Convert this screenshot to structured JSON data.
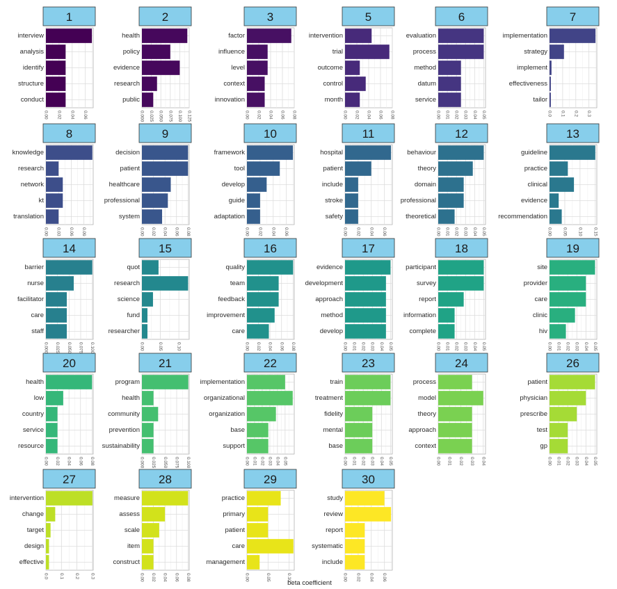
{
  "chart_data": {
    "type": "bar",
    "orientation": "horizontal",
    "xlabel": "beta coefficient",
    "grid": true,
    "panels": [
      {
        "topic": "1",
        "terms": [
          "interview",
          "analysis",
          "identify",
          "structure",
          "conduct"
        ],
        "values": [
          0.07,
          0.03,
          0.03,
          0.03,
          0.03
        ],
        "xlim": [
          0,
          0.072
        ],
        "ticks": [
          0,
          0.02,
          0.04,
          0.06
        ],
        "tick_labels": [
          "0.00",
          "0.02",
          "0.04",
          "0.06"
        ],
        "color": "#440154"
      },
      {
        "topic": "2",
        "terms": [
          "health",
          "policy",
          "evidence",
          "research",
          "public"
        ],
        "values": [
          0.12,
          0.075,
          0.1,
          0.04,
          0.03
        ],
        "xlim": [
          0,
          0.125
        ],
        "ticks": [
          0,
          0.025,
          0.05,
          0.075,
          0.1,
          0.125
        ],
        "tick_labels": [
          "0.000",
          "0.025",
          "0.050",
          "0.075",
          "0.100",
          "0.125"
        ],
        "color": "#46085c"
      },
      {
        "topic": "3",
        "terms": [
          "factor",
          "influence",
          "level",
          "context",
          "innovation"
        ],
        "values": [
          0.075,
          0.035,
          0.035,
          0.03,
          0.03
        ],
        "xlim": [
          0,
          0.08
        ],
        "ticks": [
          0,
          0.02,
          0.04,
          0.06,
          0.08
        ],
        "tick_labels": [
          "0.00",
          "0.02",
          "0.04",
          "0.06",
          "0.08"
        ],
        "color": "#471063"
      },
      {
        "topic": "5",
        "terms": [
          "intervention",
          "trial",
          "outcome",
          "control",
          "month"
        ],
        "values": [
          0.045,
          0.075,
          0.025,
          0.035,
          0.025
        ],
        "xlim": [
          0,
          0.08
        ],
        "ticks": [
          0,
          0.02,
          0.04,
          0.06,
          0.08
        ],
        "tick_labels": [
          "0.00",
          "0.02",
          "0.04",
          "0.06",
          "0.08"
        ],
        "color": "#472a7a"
      },
      {
        "topic": "6",
        "terms": [
          "evaluation",
          "process",
          "method",
          "datum",
          "service"
        ],
        "values": [
          0.05,
          0.05,
          0.025,
          0.025,
          0.025
        ],
        "xlim": [
          0,
          0.052
        ],
        "ticks": [
          0,
          0.01,
          0.02,
          0.03,
          0.04,
          0.05
        ],
        "tick_labels": [
          "0.00",
          "0.01",
          "0.02",
          "0.03",
          "0.04",
          "0.05"
        ],
        "color": "#453581"
      },
      {
        "topic": "7",
        "terms": [
          "implementation",
          "strategy",
          "implement",
          "effectiveness",
          "tailor"
        ],
        "values": [
          0.35,
          0.11,
          0.015,
          0.01,
          0.01
        ],
        "xlim": [
          0,
          0.36
        ],
        "ticks": [
          0,
          0.1,
          0.2,
          0.3
        ],
        "tick_labels": [
          "0.0",
          "0.1",
          "0.2",
          "0.3"
        ],
        "color": "#414487"
      },
      {
        "topic": "8",
        "terms": [
          "knowledge",
          "research",
          "network",
          "kt",
          "translation"
        ],
        "values": [
          0.11,
          0.03,
          0.04,
          0.04,
          0.03
        ],
        "xlim": [
          0,
          0.112
        ],
        "ticks": [
          0,
          0.03,
          0.06,
          0.09
        ],
        "tick_labels": [
          "0.00",
          "0.03",
          "0.06",
          "0.09"
        ],
        "color": "#3d4e8a"
      },
      {
        "topic": "9",
        "terms": [
          "decision",
          "patient",
          "healthcare",
          "professional",
          "system"
        ],
        "values": [
          0.08,
          0.08,
          0.05,
          0.045,
          0.035
        ],
        "xlim": [
          0,
          0.082
        ],
        "ticks": [
          0,
          0.02,
          0.04,
          0.06,
          0.08
        ],
        "tick_labels": [
          "0.00",
          "0.02",
          "0.04",
          "0.06",
          "0.08"
        ],
        "color": "#39568c"
      },
      {
        "topic": "10",
        "terms": [
          "framework",
          "tool",
          "develop",
          "guide",
          "adaptation"
        ],
        "values": [
          0.07,
          0.05,
          0.03,
          0.02,
          0.02
        ],
        "xlim": [
          0,
          0.072
        ],
        "ticks": [
          0,
          0.02,
          0.04,
          0.06
        ],
        "tick_labels": [
          "0.00",
          "0.02",
          "0.04",
          "0.06"
        ],
        "color": "#355f8d"
      },
      {
        "topic": "11",
        "terms": [
          "hospital",
          "patient",
          "include",
          "stroke",
          "safety"
        ],
        "values": [
          0.07,
          0.04,
          0.02,
          0.02,
          0.02
        ],
        "xlim": [
          0,
          0.072
        ],
        "ticks": [
          0,
          0.02,
          0.04,
          0.06
        ],
        "tick_labels": [
          "0.00",
          "0.02",
          "0.04",
          "0.06"
        ],
        "color": "#31688e"
      },
      {
        "topic": "12",
        "terms": [
          "behaviour",
          "theory",
          "domain",
          "professional",
          "theoretical"
        ],
        "values": [
          0.05,
          0.038,
          0.028,
          0.028,
          0.018
        ],
        "xlim": [
          0,
          0.052
        ],
        "ticks": [
          0,
          0.01,
          0.02,
          0.03,
          0.04,
          0.05
        ],
        "tick_labels": [
          "0.00",
          "0.01",
          "0.02",
          "0.03",
          "0.04",
          "0.05"
        ],
        "color": "#2d718e"
      },
      {
        "topic": "13",
        "terms": [
          "guideline",
          "practice",
          "clinical",
          "evidence",
          "recommendation"
        ],
        "values": [
          0.15,
          0.06,
          0.08,
          0.03,
          0.04
        ],
        "xlim": [
          0,
          0.155
        ],
        "ticks": [
          0,
          0.05,
          0.1,
          0.15
        ],
        "tick_labels": [
          "0.00",
          "0.05",
          "0.10",
          "0.15"
        ],
        "color": "#2a788e"
      },
      {
        "topic": "14",
        "terms": [
          "barrier",
          "nurse",
          "facilitator",
          "care",
          "staff"
        ],
        "values": [
          0.1,
          0.06,
          0.045,
          0.045,
          0.045
        ],
        "xlim": [
          0,
          0.102
        ],
        "ticks": [
          0,
          0.025,
          0.05,
          0.075,
          0.1
        ],
        "tick_labels": [
          "0.000",
          "0.025",
          "0.050",
          "0.075",
          "0.100"
        ],
        "color": "#27808e"
      },
      {
        "topic": "15",
        "terms": [
          "quot",
          "research",
          "science",
          "fund",
          "researcher"
        ],
        "values": [
          0.045,
          0.125,
          0.03,
          0.015,
          0.015
        ],
        "xlim": [
          0,
          0.128
        ],
        "ticks": [
          0,
          0.05,
          0.1
        ],
        "tick_labels": [
          "0.00",
          "0.05",
          "0.10"
        ],
        "color": "#23888e"
      },
      {
        "topic": "16",
        "terms": [
          "quality",
          "team",
          "feedback",
          "improvement",
          "care"
        ],
        "values": [
          0.08,
          0.055,
          0.055,
          0.048,
          0.038
        ],
        "xlim": [
          0,
          0.082
        ],
        "ticks": [
          0,
          0.02,
          0.04,
          0.06,
          0.08
        ],
        "tick_labels": [
          "0.00",
          "0.02",
          "0.04",
          "0.06",
          "0.08"
        ],
        "color": "#21918c"
      },
      {
        "topic": "17",
        "terms": [
          "evidence",
          "development",
          "approach",
          "method",
          "develop"
        ],
        "values": [
          0.05,
          0.045,
          0.045,
          0.045,
          0.045
        ],
        "xlim": [
          0,
          0.052
        ],
        "ticks": [
          0,
          0.01,
          0.02,
          0.03,
          0.04,
          0.05
        ],
        "tick_labels": [
          "0.00",
          "0.01",
          "0.02",
          "0.03",
          "0.04",
          "0.05"
        ],
        "color": "#1f998a"
      },
      {
        "topic": "18",
        "terms": [
          "participant",
          "survey",
          "report",
          "information",
          "complete"
        ],
        "values": [
          0.05,
          0.05,
          0.028,
          0.018,
          0.018
        ],
        "xlim": [
          0,
          0.052
        ],
        "ticks": [
          0,
          0.01,
          0.02,
          0.03,
          0.04,
          0.05
        ],
        "tick_labels": [
          "0.00",
          "0.01",
          "0.02",
          "0.03",
          "0.04",
          "0.05"
        ],
        "color": "#20a386"
      },
      {
        "topic": "19",
        "terms": [
          "site",
          "provider",
          "care",
          "clinic",
          "hiv"
        ],
        "values": [
          0.05,
          0.04,
          0.04,
          0.028,
          0.018
        ],
        "xlim": [
          0,
          0.052
        ],
        "ticks": [
          0,
          0.01,
          0.02,
          0.03,
          0.04,
          0.05
        ],
        "tick_labels": [
          "0.00",
          "0.01",
          "0.02",
          "0.03",
          "0.04",
          "0.05"
        ],
        "color": "#29af7f"
      },
      {
        "topic": "20",
        "terms": [
          "health",
          "low",
          "country",
          "service",
          "resource"
        ],
        "values": [
          0.08,
          0.03,
          0.02,
          0.02,
          0.02
        ],
        "xlim": [
          0,
          0.082
        ],
        "ticks": [
          0,
          0.02,
          0.04,
          0.06,
          0.08
        ],
        "tick_labels": [
          "0.00",
          "0.02",
          "0.04",
          "0.06",
          "0.08"
        ],
        "color": "#35b779"
      },
      {
        "topic": "21",
        "terms": [
          "program",
          "health",
          "community",
          "prevention",
          "sustainability"
        ],
        "values": [
          0.1,
          0.025,
          0.035,
          0.025,
          0.025
        ],
        "xlim": [
          0,
          0.102
        ],
        "ticks": [
          0,
          0.025,
          0.05,
          0.075,
          0.1
        ],
        "tick_labels": [
          "0.000",
          "0.025",
          "0.050",
          "0.075",
          "0.100"
        ],
        "color": "#44bf70"
      },
      {
        "topic": "22",
        "terms": [
          "implementation",
          "organizational",
          "organization",
          "base",
          "support"
        ],
        "values": [
          0.05,
          0.06,
          0.038,
          0.028,
          0.028
        ],
        "xlim": [
          0,
          0.062
        ],
        "ticks": [
          0,
          0.01,
          0.02,
          0.03,
          0.04,
          0.05
        ],
        "tick_labels": [
          "0.00",
          "0.01",
          "0.02",
          "0.03",
          "0.04",
          "0.05"
        ],
        "color": "#56c667"
      },
      {
        "topic": "23",
        "terms": [
          "train",
          "treatment",
          "fidelity",
          "mental",
          "base"
        ],
        "values": [
          0.05,
          0.05,
          0.03,
          0.03,
          0.03
        ],
        "xlim": [
          0,
          0.052
        ],
        "ticks": [
          0,
          0.01,
          0.02,
          0.03,
          0.04,
          0.05
        ],
        "tick_labels": [
          "0.00",
          "0.01",
          "0.02",
          "0.03",
          "0.04",
          "0.05"
        ],
        "color": "#6ccd5a"
      },
      {
        "topic": "24",
        "terms": [
          "process",
          "model",
          "theory",
          "approach",
          "context"
        ],
        "values": [
          0.03,
          0.04,
          0.03,
          0.03,
          0.03
        ],
        "xlim": [
          0,
          0.042
        ],
        "ticks": [
          0,
          0.01,
          0.02,
          0.03,
          0.04
        ],
        "tick_labels": [
          "0.00",
          "0.01",
          "0.02",
          "0.03",
          "0.04"
        ],
        "color": "#7ad151"
      },
      {
        "topic": "26",
        "terms": [
          "patient",
          "physician",
          "prescribe",
          "test",
          "gp"
        ],
        "values": [
          0.05,
          0.04,
          0.03,
          0.02,
          0.02
        ],
        "xlim": [
          0,
          0.052
        ],
        "ticks": [
          0,
          0.01,
          0.02,
          0.03,
          0.04,
          0.05
        ],
        "tick_labels": [
          "0.00",
          "0.01",
          "0.02",
          "0.03",
          "0.04",
          "0.05"
        ],
        "color": "#a5db36"
      },
      {
        "topic": "27",
        "terms": [
          "intervention",
          "change",
          "target",
          "design",
          "effective"
        ],
        "values": [
          0.3,
          0.06,
          0.03,
          0.02,
          0.02
        ],
        "xlim": [
          0,
          0.305
        ],
        "ticks": [
          0,
          0.1,
          0.2,
          0.3
        ],
        "tick_labels": [
          "0.0",
          "0.1",
          "0.2",
          "0.3"
        ],
        "color": "#bddf26"
      },
      {
        "topic": "28",
        "terms": [
          "measure",
          "assess",
          "scale",
          "item",
          "construct"
        ],
        "values": [
          0.08,
          0.04,
          0.03,
          0.02,
          0.02
        ],
        "xlim": [
          0,
          0.082
        ],
        "ticks": [
          0,
          0.02,
          0.04,
          0.06,
          0.08
        ],
        "tick_labels": [
          "0.00",
          "0.02",
          "0.04",
          "0.06",
          "0.08"
        ],
        "color": "#d2e21b"
      },
      {
        "topic": "29",
        "terms": [
          "practice",
          "primary",
          "patient",
          "care",
          "management"
        ],
        "values": [
          0.08,
          0.05,
          0.05,
          0.11,
          0.03
        ],
        "xlim": [
          0,
          0.112
        ],
        "ticks": [
          0,
          0.05,
          0.1
        ],
        "tick_labels": [
          "0.00",
          "0.05",
          "0.10"
        ],
        "color": "#e8e419"
      },
      {
        "topic": "30",
        "terms": [
          "study",
          "review",
          "report",
          "systematic",
          "include"
        ],
        "values": [
          0.06,
          0.07,
          0.03,
          0.03,
          0.03
        ],
        "xlim": [
          0,
          0.072
        ],
        "ticks": [
          0,
          0.02,
          0.04,
          0.06
        ],
        "tick_labels": [
          "0.00",
          "0.02",
          "0.04",
          "0.06"
        ],
        "color": "#fde725"
      }
    ]
  }
}
